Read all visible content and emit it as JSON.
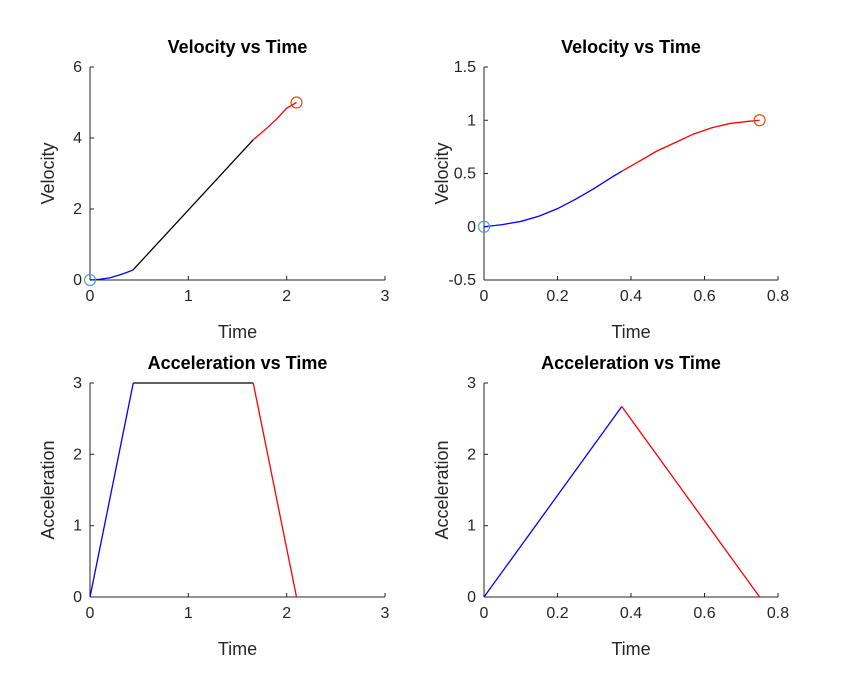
{
  "chart_data": [
    {
      "type": "line",
      "title": "Velocity vs Time",
      "xlabel": "Time",
      "ylabel": "Velocity",
      "xlim": [
        0,
        3
      ],
      "ylim": [
        0,
        6
      ],
      "xticks": [
        "0",
        "1",
        "2",
        "3"
      ],
      "yticks": [
        "0",
        "2",
        "4",
        "6"
      ],
      "grid": false,
      "series": [
        {
          "color": "#0000ff",
          "x": [
            0,
            0.1,
            0.2,
            0.3,
            0.4,
            0.44
          ],
          "y": [
            0,
            0.02,
            0.06,
            0.14,
            0.24,
            0.29
          ]
        },
        {
          "color": "#000000",
          "x": [
            0.44,
            1.0,
            1.5,
            1.66
          ],
          "y": [
            0.29,
            1.97,
            3.47,
            3.95
          ]
        },
        {
          "color": "#ff0000",
          "x": [
            1.66,
            1.8,
            1.9,
            2.0,
            2.1
          ],
          "y": [
            3.95,
            4.28,
            4.54,
            4.84,
            5.0
          ]
        }
      ],
      "markers": [
        {
          "x": 0,
          "y": 0,
          "color": "#4d9ee0"
        },
        {
          "x": 2.1,
          "y": 5.0,
          "color": "#d95319"
        }
      ]
    },
    {
      "type": "line",
      "title": "Velocity vs Time",
      "xlabel": "Time",
      "ylabel": "Velocity",
      "xlim": [
        0,
        0.8
      ],
      "ylim": [
        -0.5,
        1.5
      ],
      "xticks": [
        "0",
        "0.2",
        "0.4",
        "0.6",
        "0.8"
      ],
      "yticks": [
        "-0.5",
        "0",
        "0.5",
        "1",
        "1.5"
      ],
      "grid": false,
      "series": [
        {
          "color": "#0000ff",
          "x": [
            0,
            0.05,
            0.1,
            0.15,
            0.2,
            0.25,
            0.3,
            0.35,
            0.375
          ],
          "y": [
            0,
            0.02,
            0.05,
            0.1,
            0.17,
            0.26,
            0.36,
            0.47,
            0.52
          ]
        },
        {
          "color": "#ff0000",
          "x": [
            0.375,
            0.42,
            0.47,
            0.52,
            0.57,
            0.62,
            0.67,
            0.72,
            0.75
          ],
          "y": [
            0.52,
            0.61,
            0.71,
            0.79,
            0.87,
            0.93,
            0.97,
            0.99,
            1.0
          ]
        }
      ],
      "markers": [
        {
          "x": 0,
          "y": 0,
          "color": "#4d9ee0"
        },
        {
          "x": 0.75,
          "y": 1.0,
          "color": "#d95319"
        }
      ]
    },
    {
      "type": "line",
      "title": "Acceleration vs Time",
      "xlabel": "Time",
      "ylabel": "Acceleration",
      "xlim": [
        0,
        3
      ],
      "ylim": [
        0,
        3
      ],
      "xticks": [
        "0",
        "1",
        "2",
        "3"
      ],
      "yticks": [
        "0",
        "1",
        "2",
        "3"
      ],
      "grid": false,
      "series": [
        {
          "color": "#0000ff",
          "x": [
            0,
            0.44
          ],
          "y": [
            0,
            3
          ]
        },
        {
          "color": "#000000",
          "x": [
            0.44,
            1.66
          ],
          "y": [
            3,
            3
          ]
        },
        {
          "color": "#ff0000",
          "x": [
            1.66,
            2.1
          ],
          "y": [
            3,
            0
          ]
        }
      ],
      "markers": []
    },
    {
      "type": "line",
      "title": "Acceleration vs Time",
      "xlabel": "Time",
      "ylabel": "Acceleration",
      "xlim": [
        0,
        0.8
      ],
      "ylim": [
        0,
        3
      ],
      "xticks": [
        "0",
        "0.2",
        "0.4",
        "0.6",
        "0.8"
      ],
      "yticks": [
        "0",
        "1",
        "2",
        "3"
      ],
      "grid": false,
      "series": [
        {
          "color": "#0000ff",
          "x": [
            0,
            0.375
          ],
          "y": [
            0,
            2.67
          ]
        },
        {
          "color": "#ff0000",
          "x": [
            0.375,
            0.75
          ],
          "y": [
            2.67,
            0
          ]
        }
      ],
      "markers": []
    }
  ]
}
